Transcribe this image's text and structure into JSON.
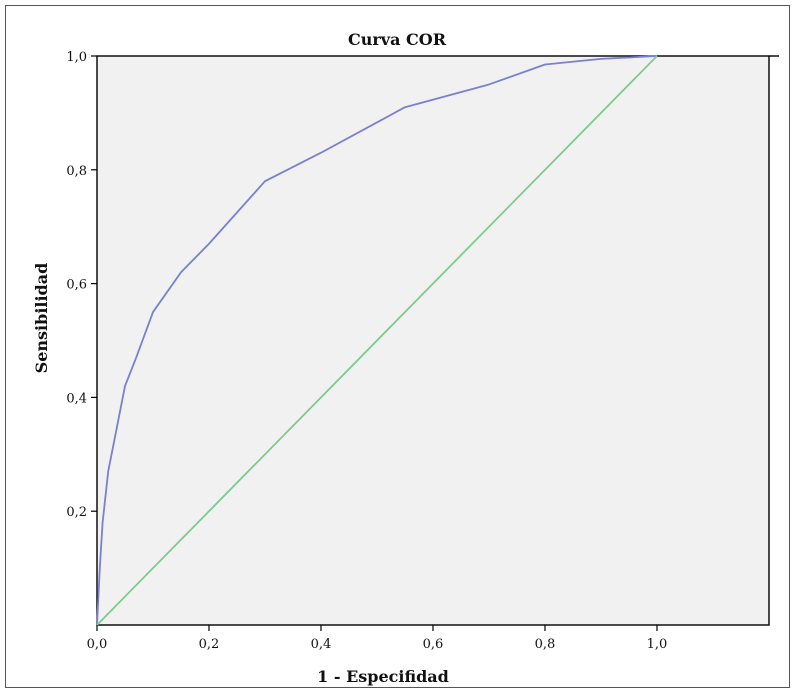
{
  "chart_data": {
    "type": "line",
    "title": "Curva COR",
    "xlabel": "1 - Especifidad",
    "ylabel": "Sensibilidad",
    "xlim": [
      0,
      1.2
    ],
    "ylim": [
      0,
      1.0
    ],
    "x_ticks": [
      "0,0",
      "0,2",
      "0,4",
      "0,6",
      "0,8",
      "1,0"
    ],
    "y_ticks": [
      "0,2",
      "0,4",
      "0,6",
      "0,8",
      "1,0"
    ],
    "x_tick_values": [
      0,
      0.2,
      0.4,
      0.6,
      0.8,
      1.0
    ],
    "y_tick_values": [
      0.2,
      0.4,
      0.6,
      0.8,
      1.0
    ],
    "grid": false,
    "background_color": "#f1f1f1",
    "series": [
      {
        "color": "#7b7fd0",
        "x": [
          0.0,
          0.005,
          0.01,
          0.02,
          0.03,
          0.05,
          0.07,
          0.1,
          0.15,
          0.2,
          0.3,
          0.4,
          0.55,
          0.7,
          0.8,
          0.9,
          1.0
        ],
        "y": [
          0.0,
          0.1,
          0.18,
          0.27,
          0.32,
          0.42,
          0.47,
          0.55,
          0.62,
          0.67,
          0.78,
          0.83,
          0.91,
          0.95,
          0.985,
          0.995,
          1.0
        ]
      },
      {
        "color": "#7dcb8a",
        "x": [
          0.0,
          1.0
        ],
        "y": [
          0.0,
          1.0
        ]
      }
    ]
  }
}
